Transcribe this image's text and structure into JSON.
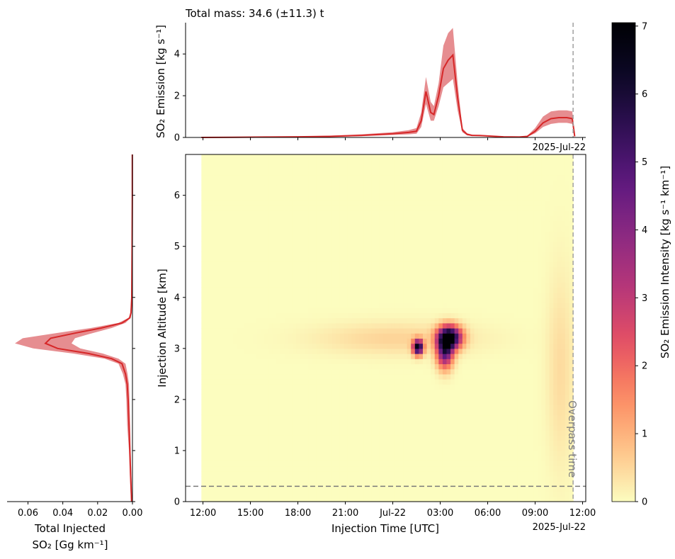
{
  "top_panel": {
    "title": "Total mass: 34.6 (±11.3) t",
    "ylabel": "SO₂ Emission [kg s⁻¹]",
    "date_label": "2025-Jul-22"
  },
  "main_panel": {
    "xlabel": "Injection Time [UTC]",
    "ylabel": "Injection Altitude [km]",
    "date_label": "2025-Jul-22",
    "overpass_label": "Overpass time"
  },
  "left_panel": {
    "xlabel_line1": "Total Injected",
    "xlabel_line2": "SO₂ [Gg km⁻¹]"
  },
  "colorbar": {
    "label": "SO₂ Emission Intensity [kg s⁻¹ km⁻¹]"
  },
  "colors": {
    "line": "#d62728",
    "band": "#e2797d",
    "overpass_line": "#a0a0a0",
    "ground_line": "#7a7a7a"
  },
  "chart_data": [
    {
      "type": "line",
      "panel": "top",
      "title": "Total mass: 34.6 (±11.3) t",
      "ylabel": "SO₂ Emission [kg s⁻¹]",
      "x_unit": "hours since 2025-07-21 00:00 UTC",
      "xlim": [
        10.9,
        36.2
      ],
      "ylim": [
        0,
        5.5
      ],
      "yticks": [
        0,
        2,
        4
      ],
      "x": [
        11.9,
        14,
        16,
        18,
        20,
        22,
        24,
        25,
        25.5,
        25.8,
        26.1,
        26.4,
        26.6,
        26.9,
        27.2,
        27.5,
        27.8,
        28.1,
        28.4,
        28.7,
        29,
        29.5,
        30,
        31,
        32,
        32.5,
        33,
        33.5,
        34,
        34.5,
        35,
        35.35,
        35.5
      ],
      "series": [
        {
          "role": "mean",
          "values": [
            0,
            0.01,
            0.02,
            0.03,
            0.05,
            0.1,
            0.18,
            0.24,
            0.3,
            0.8,
            2.2,
            1.2,
            1.1,
            2.0,
            3.3,
            3.7,
            3.95,
            1.9,
            0.35,
            0.15,
            0.1,
            0.09,
            0.07,
            0.03,
            0.02,
            0.05,
            0.3,
            0.7,
            0.9,
            0.95,
            0.95,
            0.9,
            0.05
          ]
        },
        {
          "role": "upper",
          "values": [
            0,
            0.015,
            0.03,
            0.05,
            0.08,
            0.15,
            0.25,
            0.35,
            0.45,
            1.2,
            2.9,
            1.7,
            1.5,
            2.6,
            4.4,
            5.0,
            5.25,
            2.6,
            0.45,
            0.2,
            0.14,
            0.12,
            0.1,
            0.05,
            0.03,
            0.08,
            0.45,
            1.0,
            1.25,
            1.3,
            1.3,
            1.25,
            0.08
          ]
        },
        {
          "role": "lower",
          "values": [
            0,
            0.005,
            0.01,
            0.02,
            0.03,
            0.06,
            0.12,
            0.15,
            0.18,
            0.5,
            1.6,
            0.8,
            0.8,
            1.5,
            2.4,
            2.6,
            2.8,
            1.3,
            0.25,
            0.1,
            0.07,
            0.06,
            0.05,
            0.02,
            0.01,
            0.03,
            0.2,
            0.5,
            0.65,
            0.7,
            0.7,
            0.65,
            0.03
          ]
        }
      ],
      "vline_x": 35.4,
      "vline_label": "Overpass time"
    },
    {
      "type": "heatmap",
      "panel": "main",
      "xlabel": "Injection Time [UTC]",
      "ylabel": "Injection Altitude [km]",
      "xlim": [
        10.9,
        36.2
      ],
      "ylim": [
        0,
        6.8
      ],
      "x_range": [
        11.9,
        35.4
      ],
      "y_range": [
        0,
        6.8
      ],
      "xticks": [
        12,
        15,
        18,
        21,
        24,
        27,
        30,
        33,
        36
      ],
      "xticklabels": [
        "12:00",
        "15:00",
        "18:00",
        "21:00",
        "Jul-22",
        "03:00",
        "06:00",
        "09:00",
        "12:00"
      ],
      "yticks": [
        0,
        1,
        2,
        3,
        4,
        5,
        6
      ],
      "value_range": [
        0,
        7.05
      ],
      "blobs": [
        {
          "x": 27.6,
          "y": 3.22,
          "peak": 7.0,
          "x_spread": 0.5,
          "y_spread": 0.15
        },
        {
          "x": 27.3,
          "y": 2.95,
          "peak": 4.8,
          "x_spread": 0.35,
          "y_spread": 0.22
        },
        {
          "x": 25.6,
          "y": 3.03,
          "peak": 6.7,
          "x_spread": 0.22,
          "y_spread": 0.1
        },
        {
          "x": 24.2,
          "y": 3.2,
          "peak": 0.55,
          "x_spread": 3.5,
          "y_spread": 0.22
        },
        {
          "x": 34.6,
          "y": 2.6,
          "peak": 0.45,
          "x_spread": 0.6,
          "y_spread": 1.3
        }
      ],
      "overpass_x": 35.4,
      "overpass_label": "Overpass time",
      "ground_line_y": 0.3
    },
    {
      "type": "line",
      "panel": "left",
      "xlabel": "Total Injected SO₂ [Gg km⁻¹]",
      "xlim": [
        0.072,
        0.0
      ],
      "ylim": [
        0,
        6.8
      ],
      "xticks": [
        0.06,
        0.04,
        0.02,
        0.0
      ],
      "xticklabels": [
        "0.06",
        "0.04",
        "0.02",
        "0.00"
      ],
      "y": [
        0,
        0.5,
        1,
        1.5,
        2,
        2.3,
        2.5,
        2.7,
        2.8,
        2.9,
        3.0,
        3.1,
        3.2,
        3.3,
        3.4,
        3.5,
        3.6,
        3.7,
        4,
        5,
        6,
        6.8
      ],
      "series": [
        {
          "role": "mean",
          "values": [
            0.0005,
            0.001,
            0.0015,
            0.002,
            0.0025,
            0.003,
            0.004,
            0.006,
            0.012,
            0.025,
            0.043,
            0.05,
            0.047,
            0.033,
            0.018,
            0.006,
            0.0015,
            0.0008,
            0.0004,
            0.0002,
            0.0001,
            0.0001
          ]
        },
        {
          "role": "upper",
          "values": [
            0.0008,
            0.0015,
            0.002,
            0.003,
            0.0035,
            0.004,
            0.0055,
            0.008,
            0.016,
            0.034,
            0.057,
            0.0675,
            0.063,
            0.044,
            0.024,
            0.008,
            0.0022,
            0.0012,
            0.0006,
            0.0003,
            0.00015,
            0.0001
          ]
        },
        {
          "role": "lower",
          "values": [
            0.0003,
            0.0006,
            0.001,
            0.0013,
            0.0017,
            0.002,
            0.0028,
            0.004,
            0.008,
            0.017,
            0.03,
            0.035,
            0.033,
            0.023,
            0.012,
            0.004,
            0.001,
            0.0005,
            0.0002,
            0.0001,
            5e-05,
            5e-05
          ]
        }
      ]
    },
    {
      "type": "colorbar",
      "panel": "colorbar",
      "label": "SO₂ Emission Intensity [kg s⁻¹ km⁻¹]",
      "range": [
        0,
        7.05
      ],
      "ticks": [
        0,
        1,
        2,
        3,
        4,
        5,
        6,
        7
      ],
      "colormap": "magma_r"
    }
  ]
}
